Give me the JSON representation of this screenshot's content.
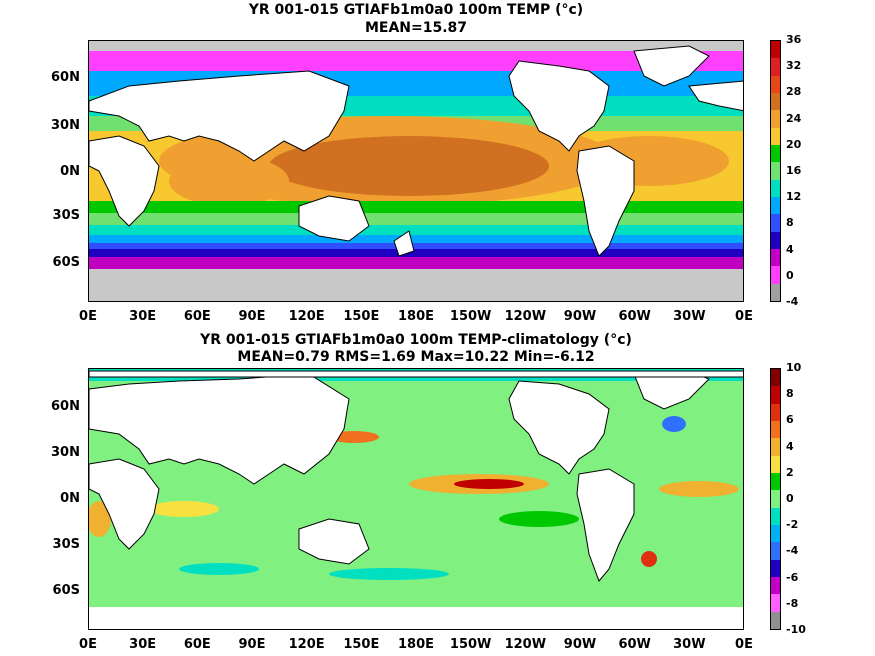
{
  "panel1": {
    "title": "YR 001-015 GTIAFb1m0a0 100m TEMP (°c)",
    "subtitle": "MEAN=15.87",
    "lat_labels": [
      "60N",
      "30N",
      "0N",
      "30S",
      "60S"
    ],
    "lon_labels": [
      "0E",
      "30E",
      "60E",
      "90E",
      "120E",
      "150E",
      "180E",
      "150W",
      "120W",
      "90W",
      "60W",
      "30W",
      "0E"
    ],
    "colorbar": {
      "ticks": [
        "36",
        "32",
        "28",
        "24",
        "20",
        "16",
        "12",
        "8",
        "4",
        "0",
        "-4"
      ],
      "colors": [
        "#c00000",
        "#e02020",
        "#e84818",
        "#d07020",
        "#f0a030",
        "#f8c830",
        "#00c800",
        "#70e070",
        "#00e0c0",
        "#00a8ff",
        "#3050ff",
        "#2000c0",
        "#c000c0",
        "#ff40ff",
        "#a0a0a0"
      ]
    }
  },
  "panel2": {
    "title": "YR 001-015 GTIAFb1m0a0 100m TEMP-climatology (°c)",
    "subtitle": "MEAN=0.79   RMS=1.69   Max=10.22   Min=-6.12",
    "lat_labels": [
      "60N",
      "30N",
      "0N",
      "30S",
      "60S"
    ],
    "lon_labels": [
      "0E",
      "30E",
      "60E",
      "90E",
      "120E",
      "150E",
      "180E",
      "150W",
      "120W",
      "90W",
      "60W",
      "30W",
      "0E"
    ],
    "colorbar": {
      "ticks": [
        "10",
        "8",
        "6",
        "4",
        "2",
        "0",
        "-2",
        "-4",
        "-6",
        "-8",
        "-10"
      ],
      "colors": [
        "#800000",
        "#c00000",
        "#e03010",
        "#f07020",
        "#f0b030",
        "#f8e040",
        "#00c800",
        "#80f080",
        "#00e0c0",
        "#00b0f0",
        "#3070ff",
        "#2000c0",
        "#c000c0",
        "#ff60ff",
        "#909090"
      ]
    }
  }
}
